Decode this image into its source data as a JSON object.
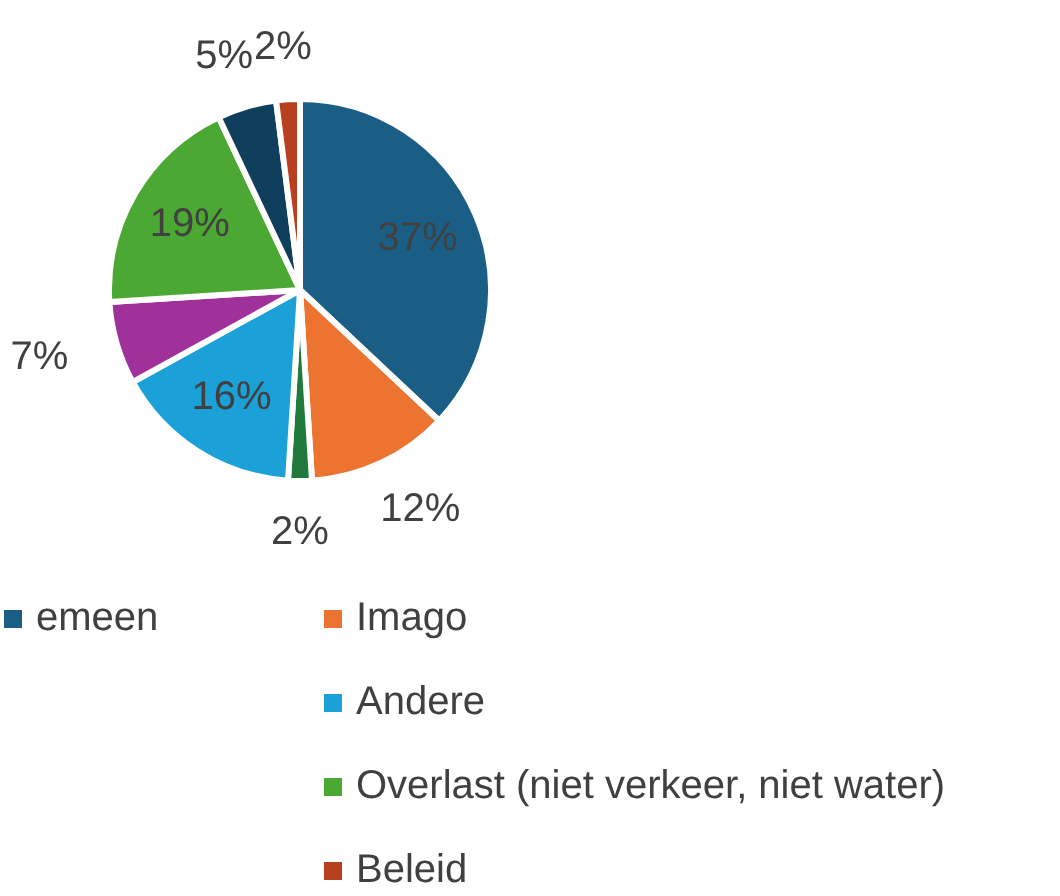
{
  "chart_data": {
    "type": "pie",
    "categories": [
      "emeen",
      "Imago",
      null,
      "Andere",
      null,
      "Overlast (niet verkeer, niet water)",
      null,
      "Beleid"
    ],
    "values": [
      37,
      12,
      2,
      16,
      7,
      19,
      5,
      2
    ],
    "value_labels": [
      "37%",
      "12%",
      "2%",
      "16%",
      "7%",
      "19%",
      "5%",
      "2%"
    ],
    "colors": [
      "#1b5e85",
      "#ed7331",
      "#1f7a3c",
      "#1ba0d8",
      "#a0309a",
      "#4ba833",
      "#0f3f5c",
      "#b7401e"
    ],
    "legend": "bottom"
  }
}
